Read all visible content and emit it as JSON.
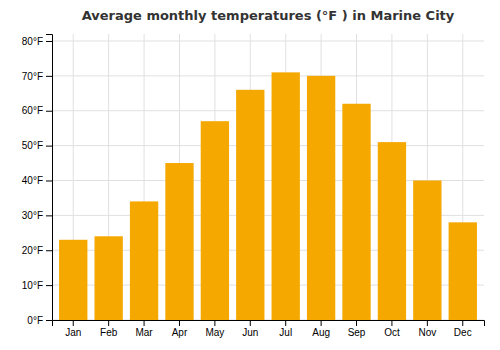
{
  "chart_data": {
    "type": "bar",
    "title": "Average monthly temperatures (°F ) in Marine City",
    "categories": [
      "Jan",
      "Feb",
      "Mar",
      "Apr",
      "May",
      "Jun",
      "Jul",
      "Aug",
      "Sep",
      "Oct",
      "Nov",
      "Dec"
    ],
    "values": [
      23,
      24,
      34,
      45,
      57,
      66,
      71,
      70,
      62,
      51,
      40,
      28
    ],
    "color": "#F5A800",
    "ylim": [
      0,
      82
    ],
    "yticks": [
      {
        "value": 0,
        "label": "0°F"
      },
      {
        "value": 10,
        "label": "10°F"
      },
      {
        "value": 20,
        "label": "20°F"
      },
      {
        "value": 30,
        "label": "30°F"
      },
      {
        "value": 40,
        "label": "40°F"
      },
      {
        "value": 50,
        "label": "50°F"
      },
      {
        "value": 60,
        "label": "60°F"
      },
      {
        "value": 70,
        "label": "70°F"
      },
      {
        "value": 80,
        "label": "80°F"
      }
    ],
    "grid": true
  }
}
